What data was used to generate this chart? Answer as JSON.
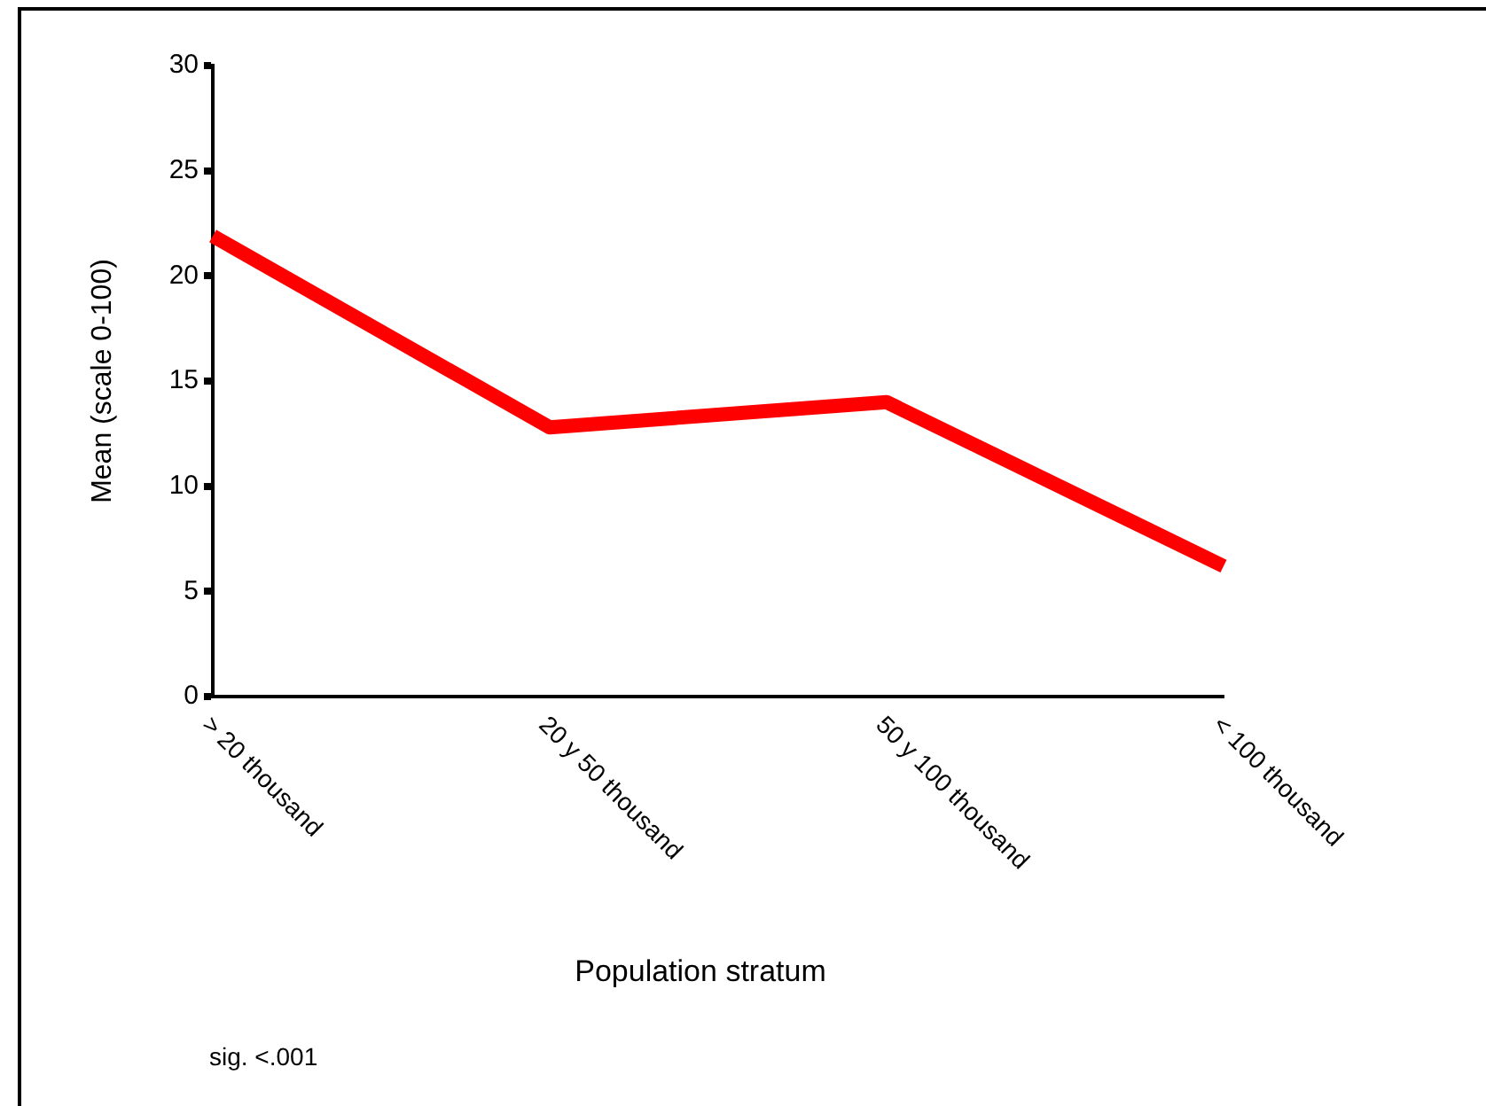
{
  "chart_data": {
    "type": "line",
    "xlabel": "Population stratum",
    "ylabel": "Mean (scale 0-100)",
    "annotations": [
      "sig. <.001"
    ],
    "categories": [
      "> 20 thousand",
      "20 y 50 thousand",
      "50 y 100 thousand",
      "< 100 thousand"
    ],
    "series": [
      {
        "color": "#ff0000",
        "values": [
          21.9,
          12.8,
          14.0,
          6.2
        ]
      }
    ],
    "ylim": [
      0,
      30
    ],
    "yticks": [
      0,
      5,
      10,
      15,
      20,
      25,
      30
    ],
    "grid": false,
    "legend": false,
    "marker": "none",
    "line_style": "solid"
  }
}
